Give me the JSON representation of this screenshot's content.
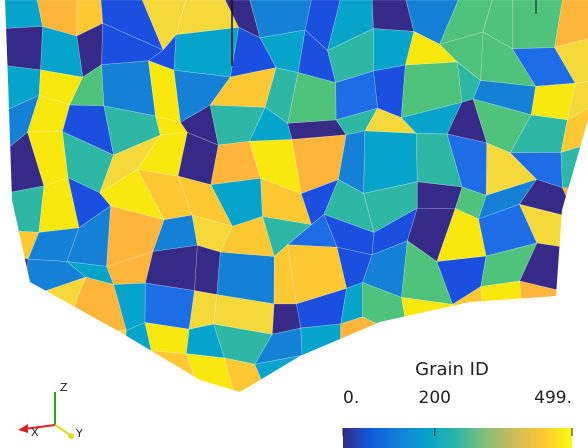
{
  "colorbar": {
    "title": "Grain ID",
    "range": [
      0,
      499
    ],
    "ticks": [
      {
        "value": 0,
        "label": "0."
      },
      {
        "value": 200,
        "label": "200"
      },
      {
        "value": 499,
        "label": "499."
      }
    ],
    "colormap": "parula"
  },
  "axes_triad": {
    "z": "Z",
    "x": "X",
    "y": "Y"
  }
}
